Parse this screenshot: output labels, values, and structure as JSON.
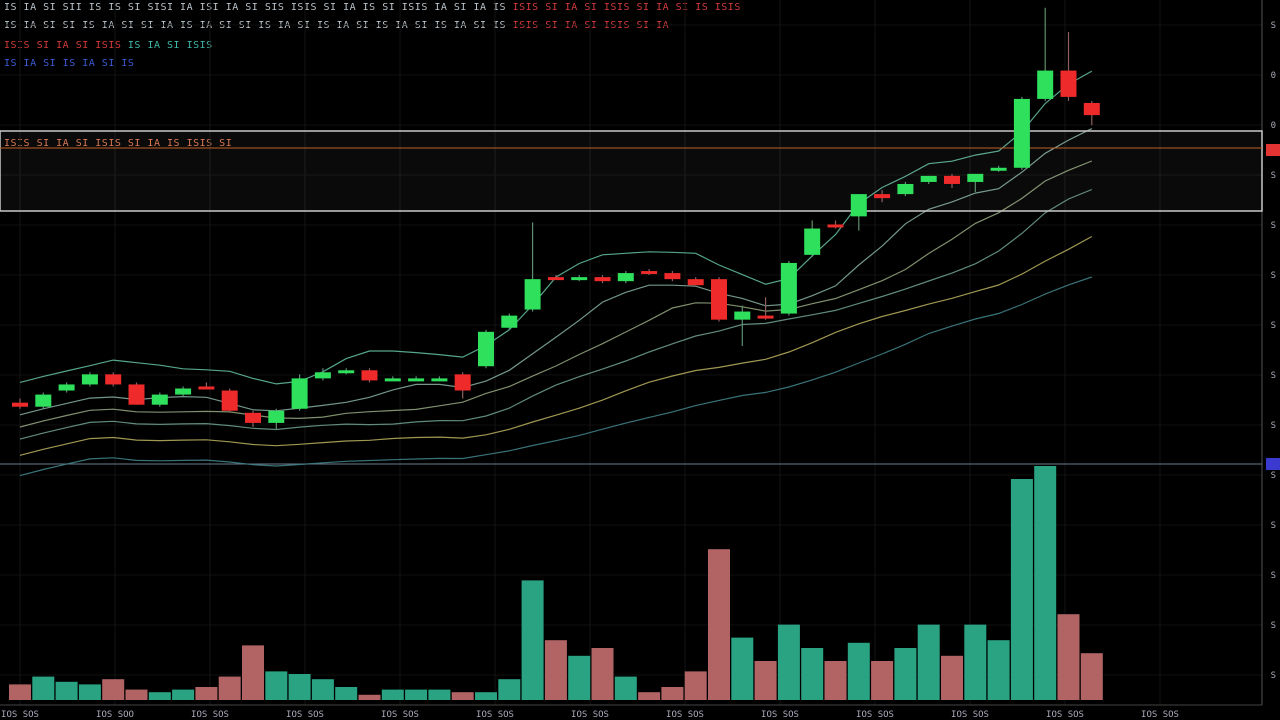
{
  "header": {
    "line1": "IS IA SI SII IS IS SI SISI IA ISI IA SI SIS ISIS SI IA IS SI ISIS IA SI IA IS",
    "line1_red": "ISIS SI IA SI ISIS SI IA SI IS ISIS",
    "line2": "IS IA SI SI IS IA SI SI IA IS IA SI SI IS IA SI IS IA SI IS IA SI IS IA SI IS",
    "line2_red": "ISIS SI IA SI ISIS SI IA",
    "line3_red": "ISIS SI IA SI ISIS",
    "line3_teal": "IS IA SI ISIS",
    "line4_blue": "IS IA SI IS IA SI IS"
  },
  "zone_label": "ISIS SI IA SI ISIS SI IA IS ISIS SI",
  "colors": {
    "background": "#000000",
    "up": "#2ee05c",
    "down": "#ee2a2a",
    "vol_up": "#2aa383",
    "vol_down": "#b26464",
    "zone_border": "#c9c9c9",
    "current_price_marker": "#e33333",
    "blue_marker": "#3a3ad0"
  },
  "chart_data": {
    "type": "candlestick",
    "x_ticks": [
      "IOS SOS",
      "IOS SOO",
      "IOS SOS",
      "IOS SOS",
      "IOS SOS",
      "IOS SOS",
      "IOS SOS",
      "IOS SOS",
      "IOS SOS",
      "IOS SOS",
      "IOS SOS",
      "IOS SOS",
      "IOS SOS"
    ],
    "y_ticks": [
      "S",
      "0",
      "0",
      "S",
      "S",
      "S",
      "S",
      "S",
      "S",
      "S",
      "S",
      "S",
      "S",
      "S"
    ],
    "price_range": [
      0,
      100
    ],
    "volume_range": [
      0,
      100
    ],
    "candles": [
      {
        "o": 26.5,
        "h": 27.5,
        "l": 25.0,
        "c": 25.5,
        "v": 6
      },
      {
        "o": 25.5,
        "h": 29.0,
        "l": 25.0,
        "c": 28.5,
        "v": 9
      },
      {
        "o": 29.5,
        "h": 31.5,
        "l": 29.0,
        "c": 31.0,
        "v": 7
      },
      {
        "o": 31.0,
        "h": 34.0,
        "l": 30.5,
        "c": 33.5,
        "v": 6
      },
      {
        "o": 33.5,
        "h": 34.0,
        "l": 30.5,
        "c": 31.0,
        "v": 8
      },
      {
        "o": 31.0,
        "h": 31.5,
        "l": 26.0,
        "c": 26.0,
        "v": 4
      },
      {
        "o": 26.0,
        "h": 29.0,
        "l": 25.5,
        "c": 28.5,
        "v": 3
      },
      {
        "o": 28.5,
        "h": 30.5,
        "l": 28.0,
        "c": 30.0,
        "v": 4
      },
      {
        "o": 30.5,
        "h": 31.5,
        "l": 30.0,
        "c": 30.0,
        "v": 5
      },
      {
        "o": 29.5,
        "h": 30.0,
        "l": 24.0,
        "c": 24.5,
        "v": 9
      },
      {
        "o": 24.0,
        "h": 24.5,
        "l": 20.5,
        "c": 21.5,
        "v": 21
      },
      {
        "o": 21.5,
        "h": 25.0,
        "l": 20.0,
        "c": 24.5,
        "v": 11
      },
      {
        "o": 25.0,
        "h": 33.5,
        "l": 24.5,
        "c": 32.5,
        "v": 10
      },
      {
        "o": 32.5,
        "h": 35.0,
        "l": 32.0,
        "c": 34.0,
        "v": 8
      },
      {
        "o": 34.0,
        "h": 35.0,
        "l": 33.5,
        "c": 34.5,
        "v": 5
      },
      {
        "o": 34.5,
        "h": 35.0,
        "l": 31.5,
        "c": 32.0,
        "v": 2
      },
      {
        "o": 32.5,
        "h": 33.0,
        "l": 32.0,
        "c": 32.5,
        "v": 4
      },
      {
        "o": 32.5,
        "h": 33.0,
        "l": 32.0,
        "c": 32.5,
        "v": 4
      },
      {
        "o": 32.5,
        "h": 33.0,
        "l": 32.0,
        "c": 32.5,
        "v": 4
      },
      {
        "o": 33.5,
        "h": 34.0,
        "l": 27.5,
        "c": 29.5,
        "v": 3
      },
      {
        "o": 35.5,
        "h": 44.5,
        "l": 35.0,
        "c": 44.0,
        "v": 3
      },
      {
        "o": 45.0,
        "h": 48.5,
        "l": 44.5,
        "c": 48.0,
        "v": 8
      },
      {
        "o": 49.5,
        "h": 71.0,
        "l": 49.0,
        "c": 57.0,
        "v": 46
      },
      {
        "o": 57.5,
        "h": 58.0,
        "l": 57.0,
        "c": 57.0,
        "v": 23
      },
      {
        "o": 57.0,
        "h": 58.0,
        "l": 56.5,
        "c": 57.5,
        "v": 17
      },
      {
        "o": 57.5,
        "h": 58.0,
        "l": 56.0,
        "c": 56.5,
        "v": 20
      },
      {
        "o": 56.5,
        "h": 59.0,
        "l": 56.0,
        "c": 58.5,
        "v": 9
      },
      {
        "o": 59.0,
        "h": 59.5,
        "l": 58.0,
        "c": 58.5,
        "v": 3
      },
      {
        "o": 58.5,
        "h": 59.0,
        "l": 56.5,
        "c": 57.0,
        "v": 5
      },
      {
        "o": 57.0,
        "h": 57.5,
        "l": 55.5,
        "c": 55.5,
        "v": 11
      },
      {
        "o": 57.0,
        "h": 57.5,
        "l": 46.5,
        "c": 47.0,
        "v": 58
      },
      {
        "o": 47.0,
        "h": 50.5,
        "l": 40.5,
        "c": 49.0,
        "v": 24
      },
      {
        "o": 48.0,
        "h": 52.5,
        "l": 47.0,
        "c": 47.5,
        "v": 15
      },
      {
        "o": 48.5,
        "h": 61.5,
        "l": 48.0,
        "c": 61.0,
        "v": 29
      },
      {
        "o": 63.0,
        "h": 71.5,
        "l": 62.5,
        "c": 69.5,
        "v": 20
      },
      {
        "o": 70.5,
        "h": 71.5,
        "l": 69.5,
        "c": 70.0,
        "v": 15
      },
      {
        "o": 72.5,
        "h": 78.0,
        "l": 69.0,
        "c": 78.0,
        "v": 22
      },
      {
        "o": 78.0,
        "h": 79.0,
        "l": 76.0,
        "c": 77.0,
        "v": 15
      },
      {
        "o": 78.0,
        "h": 81.0,
        "l": 77.5,
        "c": 80.5,
        "v": 20
      },
      {
        "o": 81.0,
        "h": 82.5,
        "l": 80.5,
        "c": 82.5,
        "v": 29
      },
      {
        "o": 82.5,
        "h": 83.0,
        "l": 79.5,
        "c": 80.5,
        "v": 17
      },
      {
        "o": 81.0,
        "h": 83.0,
        "l": 78.5,
        "c": 83.0,
        "v": 29
      },
      {
        "o": 84.0,
        "h": 85.0,
        "l": 83.5,
        "c": 84.5,
        "v": 23
      },
      {
        "o": 84.5,
        "h": 102.0,
        "l": 84.0,
        "c": 101.5,
        "v": 85
      },
      {
        "o": 101.5,
        "h": 124.0,
        "l": 101.0,
        "c": 108.5,
        "v": 90
      },
      {
        "o": 108.5,
        "h": 118.0,
        "l": 101.0,
        "c": 102.0,
        "v": 33
      },
      {
        "o": 100.5,
        "h": 101.0,
        "l": 95.0,
        "c": 97.5,
        "v": 18
      }
    ]
  }
}
